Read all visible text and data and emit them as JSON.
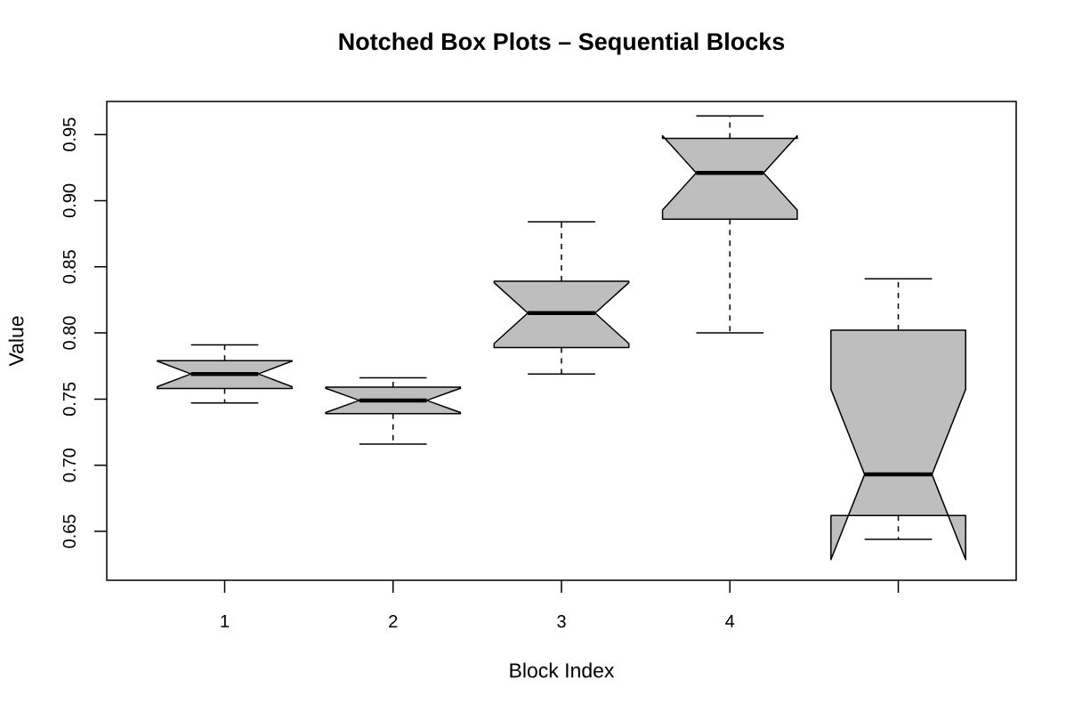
{
  "chart_data": {
    "type": "box",
    "title": "Notched Box Plots – Sequential Blocks",
    "xlabel": "Block Index",
    "ylabel": "Value",
    "categories": [
      "1",
      "2",
      "3",
      "4",
      null
    ],
    "boxes": [
      {
        "low": 0.747,
        "q1": 0.758,
        "median": 0.769,
        "q3": 0.779,
        "high": 0.791
      },
      {
        "low": 0.716,
        "q1": 0.739,
        "median": 0.749,
        "q3": 0.759,
        "high": 0.766
      },
      {
        "low": 0.769,
        "q1": 0.789,
        "median": 0.815,
        "q3": 0.839,
        "high": 0.884
      },
      {
        "low": 0.8,
        "q1": 0.886,
        "median": 0.921,
        "q3": 0.947,
        "high": 0.964
      },
      {
        "low": 0.644,
        "q1": 0.662,
        "median": 0.693,
        "q3": 0.802,
        "high": 0.841
      }
    ],
    "color": "#bebebe",
    "ylim": [
      0.613,
      0.975
    ],
    "yticks": [
      0.65,
      {
        "value": 0.7,
        "label": "0.70"
      },
      0.75,
      {
        "value": 0.8,
        "label": "0.80"
      },
      0.85,
      {
        "value": 0.9,
        "label": "0.90"
      },
      0.95
    ]
  }
}
